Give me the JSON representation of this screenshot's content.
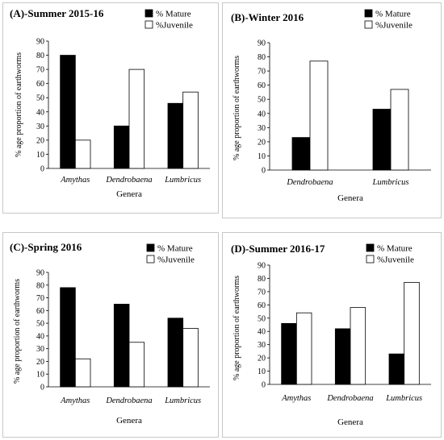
{
  "legend_labels": [
    "% Mature",
    "%Juvenile"
  ],
  "colors": {
    "mature": "#000000",
    "juvenile": "#ffffff"
  },
  "chart_data": [
    {
      "type": "bar",
      "title": "(A)-Summer 2015-16",
      "categories": [
        "Amythas",
        "Dendrobaena",
        "Lumbricus"
      ],
      "series": [
        {
          "name": "% Mature",
          "values": [
            80,
            30,
            46
          ]
        },
        {
          "name": "%Juvenile",
          "values": [
            20,
            70,
            54
          ]
        }
      ],
      "xlabel": "Genera",
      "ylabel": "% age proportion of earthworms",
      "ylim": [
        0,
        90
      ],
      "yticks": [
        0,
        10,
        20,
        30,
        40,
        50,
        60,
        70,
        80,
        90
      ],
      "legend": "top-right"
    },
    {
      "type": "bar",
      "title": "(B)-Winter 2016",
      "categories": [
        "Dendrobaena",
        "Lumbricus"
      ],
      "series": [
        {
          "name": "% Mature",
          "values": [
            23,
            43
          ]
        },
        {
          "name": "%Juvenile",
          "values": [
            77,
            57
          ]
        }
      ],
      "xlabel": "Genera",
      "ylabel": "% age proportion of earthworms",
      "ylim": [
        0,
        90
      ],
      "yticks": [
        0,
        10,
        20,
        30,
        40,
        50,
        60,
        70,
        80,
        90
      ],
      "legend": "top-right"
    },
    {
      "type": "bar",
      "title": "(C)-Spring 2016",
      "categories": [
        "Amythas",
        "Dendrobaena",
        "Lumbricus"
      ],
      "series": [
        {
          "name": "% Mature",
          "values": [
            78,
            65,
            54
          ]
        },
        {
          "name": "%Juvenile",
          "values": [
            22,
            35,
            46
          ]
        }
      ],
      "xlabel": "Genera",
      "ylabel": "% age proportion of earthworms",
      "ylim": [
        0,
        90
      ],
      "yticks": [
        0,
        10,
        20,
        30,
        40,
        50,
        60,
        70,
        80,
        90
      ],
      "legend": "top-right"
    },
    {
      "type": "bar",
      "title": "(D)-Summer 2016-17",
      "categories": [
        "Amythas",
        "Dendrobaena",
        "Lumbricus"
      ],
      "series": [
        {
          "name": "% Mature",
          "values": [
            46,
            42,
            23
          ]
        },
        {
          "name": "%Juvenile",
          "values": [
            54,
            58,
            77
          ]
        }
      ],
      "xlabel": "Genera",
      "ylabel": "% age proportion of earthworms",
      "ylim": [
        0,
        90
      ],
      "yticks": [
        0,
        10,
        20,
        30,
        40,
        50,
        60,
        70,
        80,
        90
      ],
      "legend": "top-right"
    }
  ]
}
